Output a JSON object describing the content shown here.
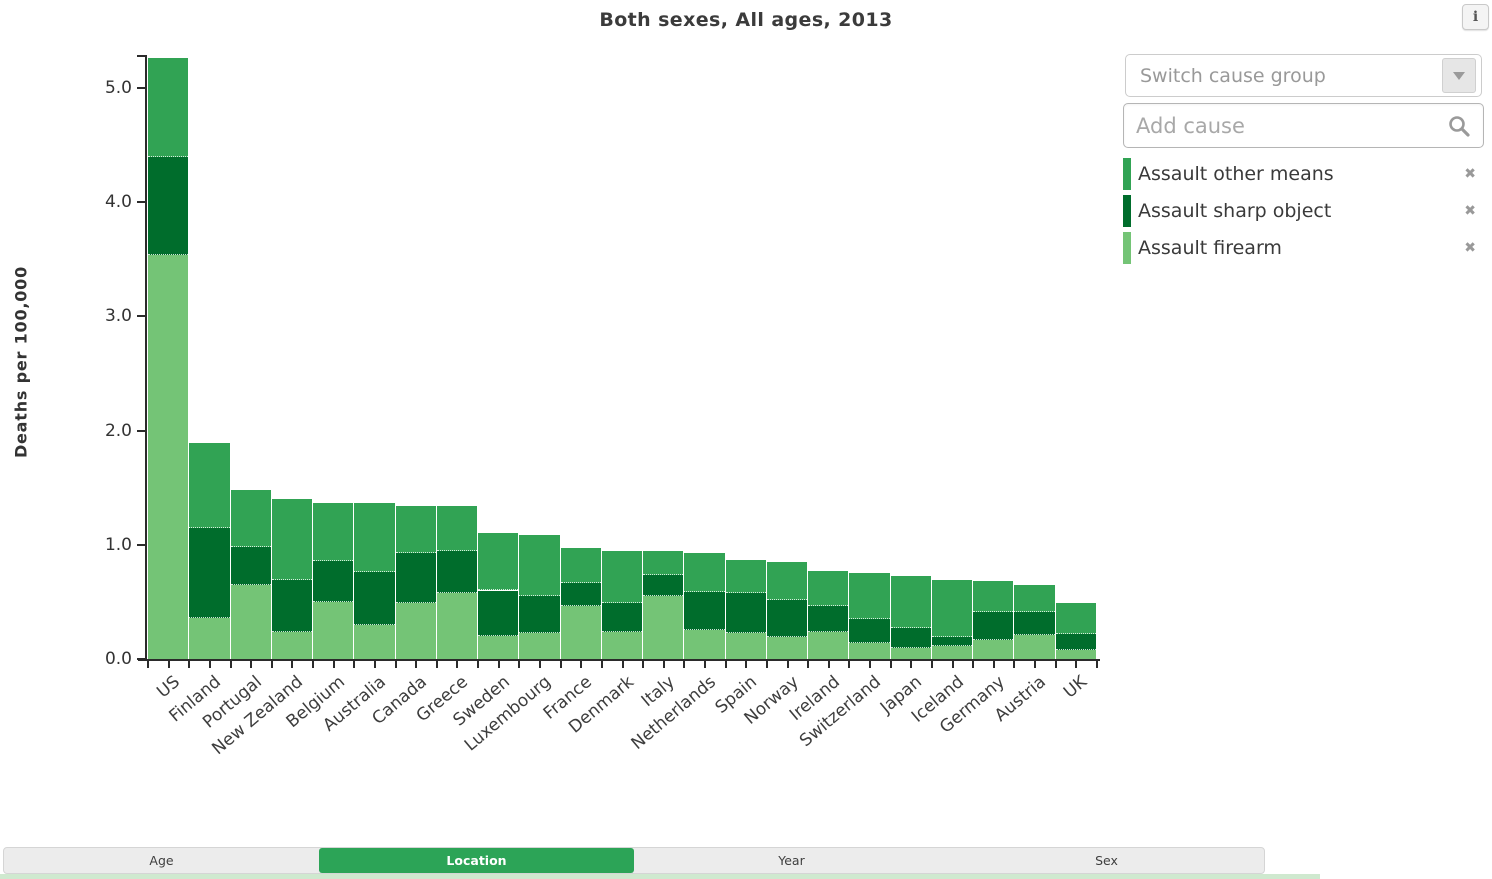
{
  "header": {
    "title": "Both sexes, All ages, 2013",
    "info_label": "i"
  },
  "controls": {
    "switch_placeholder": "Switch cause group",
    "add_placeholder": "Add cause"
  },
  "legend": {
    "items": [
      {
        "label": "Assault other means",
        "color": "#31a354"
      },
      {
        "label": "Assault sharp object",
        "color": "#006d2c"
      },
      {
        "label": "Assault firearm",
        "color": "#74c476"
      }
    ]
  },
  "tabs": {
    "items": [
      {
        "label": "Age",
        "active": false
      },
      {
        "label": "Location",
        "active": true
      },
      {
        "label": "Year",
        "active": false
      },
      {
        "label": "Sex",
        "active": false
      }
    ]
  },
  "chart_data": {
    "type": "bar",
    "stacked": true,
    "title": "Both sexes, All ages, 2013",
    "xlabel": "",
    "ylabel": "Deaths per 100,000",
    "ylim": [
      0,
      5.29
    ],
    "grid": false,
    "legend_position": "right",
    "yticks": [
      0,
      1,
      2,
      3,
      4,
      5
    ],
    "ytick_labels": [
      "0.0",
      "1.0",
      "2.0",
      "3.0",
      "4.0",
      "5.0"
    ],
    "categories": [
      "US",
      "Finland",
      "Portugal",
      "New Zealand",
      "Belgium",
      "Australia",
      "Canada",
      "Greece",
      "Sweden",
      "Luxembourg",
      "France",
      "Denmark",
      "Italy",
      "Netherlands",
      "Spain",
      "Norway",
      "Ireland",
      "Switzerland",
      "Japan",
      "Iceland",
      "Germany",
      "Austria",
      "UK"
    ],
    "series": [
      {
        "name": "Assault firearm",
        "color": "#74c476",
        "values": [
          3.54,
          0.36,
          0.65,
          0.24,
          0.5,
          0.3,
          0.49,
          0.58,
          0.2,
          0.23,
          0.46,
          0.24,
          0.55,
          0.25,
          0.23,
          0.19,
          0.24,
          0.14,
          0.1,
          0.11,
          0.17,
          0.21,
          0.08
        ]
      },
      {
        "name": "Assault sharp object",
        "color": "#006d2c",
        "values": [
          0.86,
          0.79,
          0.33,
          0.45,
          0.36,
          0.46,
          0.44,
          0.37,
          0.4,
          0.32,
          0.21,
          0.25,
          0.19,
          0.34,
          0.35,
          0.33,
          0.22,
          0.21,
          0.17,
          0.08,
          0.24,
          0.2,
          0.14
        ]
      },
      {
        "name": "Assault other means",
        "color": "#31a354",
        "values": [
          0.86,
          0.74,
          0.5,
          0.71,
          0.51,
          0.61,
          0.41,
          0.39,
          0.5,
          0.54,
          0.3,
          0.46,
          0.21,
          0.34,
          0.29,
          0.33,
          0.31,
          0.4,
          0.46,
          0.5,
          0.27,
          0.24,
          0.27
        ]
      }
    ],
    "totals": [
      5.26,
      1.89,
      1.48,
      1.4,
      1.37,
      1.37,
      1.34,
      1.34,
      1.1,
      1.09,
      0.97,
      0.95,
      0.95,
      0.93,
      0.87,
      0.85,
      0.77,
      0.75,
      0.73,
      0.69,
      0.68,
      0.65,
      0.49
    ]
  }
}
